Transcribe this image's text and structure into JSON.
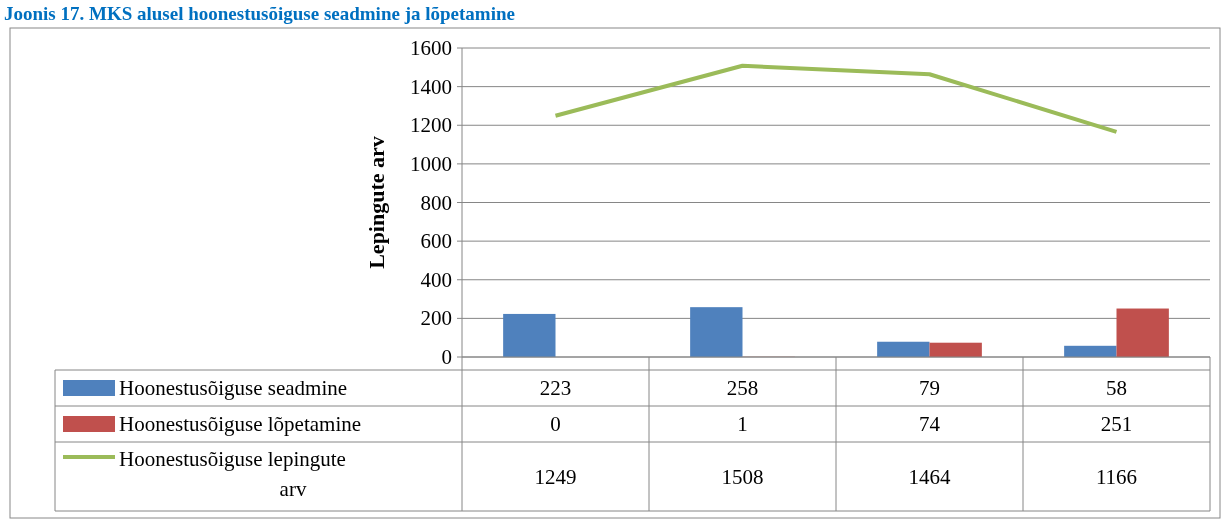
{
  "chart_data": {
    "type": "bar",
    "title": "Joonis 17. MKS alusel hoonestusõiguse seadmine ja lõpetamine",
    "ylabel": "Lepingute arv",
    "categories": [
      null,
      null,
      null,
      null
    ],
    "series": [
      {
        "name": "Hoonestusõiguse seadmine",
        "color": "#4f81bd",
        "values": [
          223,
          258,
          79,
          58
        ]
      },
      {
        "name": "Hoonestusõiguse lõpetamine",
        "color": "#c0504d",
        "values": [
          0,
          1,
          74,
          251
        ]
      },
      {
        "name": "Hoonestusõiguse lepingute arv",
        "type": "line",
        "color": "#9bbb59",
        "values": [
          1249,
          1508,
          1464,
          1166
        ]
      }
    ],
    "ylim": [
      0,
      1600
    ],
    "yticks": [
      0,
      200,
      400,
      600,
      800,
      1000,
      1200,
      1400,
      1600
    ],
    "grid": "y",
    "legend": "bottom",
    "data_labels": true,
    "marker": "none"
  }
}
